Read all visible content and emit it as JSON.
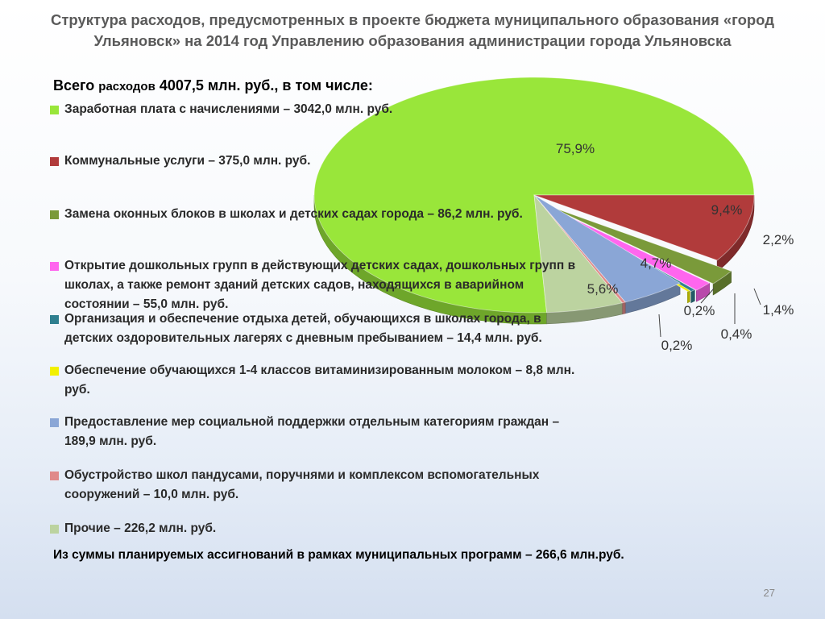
{
  "title": "Структура расходов, предусмотренных в проекте бюджета муниципального образования «город Ульяновск» на 2014 год Управлению образования администрации города Ульяновска",
  "total": {
    "prefix": "Всего",
    "word": "расходов",
    "value": "4007,5 млн. руб., в том числе:"
  },
  "legend": [
    {
      "text": "Заработная плата с начислениями – 3042,0 млн. руб.",
      "color": "#99e63a"
    },
    {
      "text": "Коммунальные услуги – 375,0 млн. руб.",
      "color": "#b13b3b"
    },
    {
      "text": "Замена оконных блоков в школах и детских садах города – 86,2 млн. руб.",
      "color": "#7a9a3a"
    },
    {
      "text": "Открытие дошкольных групп в действующих детских садах, дошкольных групп в школах, а также ремонт зданий детских садов, находящихся в аварийном состоянии – 55,0 млн. руб.",
      "color": "#ff66ee"
    },
    {
      "text": "Организация и обеспечение отдыха детей, обучающихся в школах города, в детских оздоровительных лагерях с дневным пребыванием – 14,4 млн. руб.",
      "color": "#2f7f8f"
    },
    {
      "text": "Обеспечение обучающихся 1-4 классов витаминизированным молоком – 8,8 млн. руб.",
      "color": "#f2f000"
    },
    {
      "text": "Предоставление мер социальной поддержки отдельным категориям граждан – 189,9 млн. руб.",
      "color": "#8aa6d6"
    },
    {
      "text": "Обустройство школ пандусами, поручнями и комплексом вспомогательных сооружений – 10,0 млн. руб.",
      "color": "#e08a8a"
    },
    {
      "text": "Прочие – 226,2 млн. руб.",
      "color": "#bcd3a0"
    }
  ],
  "footer": "Из суммы планируемых ассигнований в рамках муниципальных программ – 266,6 млн.руб.",
  "page_number": "27",
  "chart_data": {
    "type": "pie",
    "title": "",
    "unit": "млн. руб.",
    "slices": [
      {
        "name": "Заработная плата с начислениями",
        "value": 3042.0,
        "label": "75,9%",
        "color": "#99e63a"
      },
      {
        "name": "Коммунальные услуги",
        "value": 375.0,
        "label": "9,4%",
        "color": "#b13b3b"
      },
      {
        "name": "Замена оконных блоков в школах и детских садах города",
        "value": 86.2,
        "label": "2,2%",
        "color": "#7a9a3a"
      },
      {
        "name": "Открытие дошкольных групп в действующих детских садах, дошкольных групп в школах, а также ремонт зданий детских садов, находящихся в аварийном состоянии",
        "value": 55.0,
        "label": "1,4%",
        "color": "#ff66ee"
      },
      {
        "name": "Организация и обеспечение отдыха детей, обучающихся в школах города, в детских оздоровительных лагерях с дневным пребыванием",
        "value": 14.4,
        "label": "0,4%",
        "color": "#2f7f8f"
      },
      {
        "name": "Обеспечение обучающихся 1-4 классов витаминизированным молоком",
        "value": 8.8,
        "label": "0,2%",
        "color": "#f2f000"
      },
      {
        "name": "Предоставление мер социальной поддержки отдельным категориям граждан",
        "value": 189.9,
        "label": "4,7%",
        "color": "#8aa6d6"
      },
      {
        "name": "Обустройство школ пандусами, поручнями и комплексом вспомогательных сооружений",
        "value": 10.0,
        "label": "0,2%",
        "color": "#e08a8a"
      },
      {
        "name": "Прочие",
        "value": 226.2,
        "label": "5,6%",
        "color": "#bcd3a0"
      }
    ]
  }
}
